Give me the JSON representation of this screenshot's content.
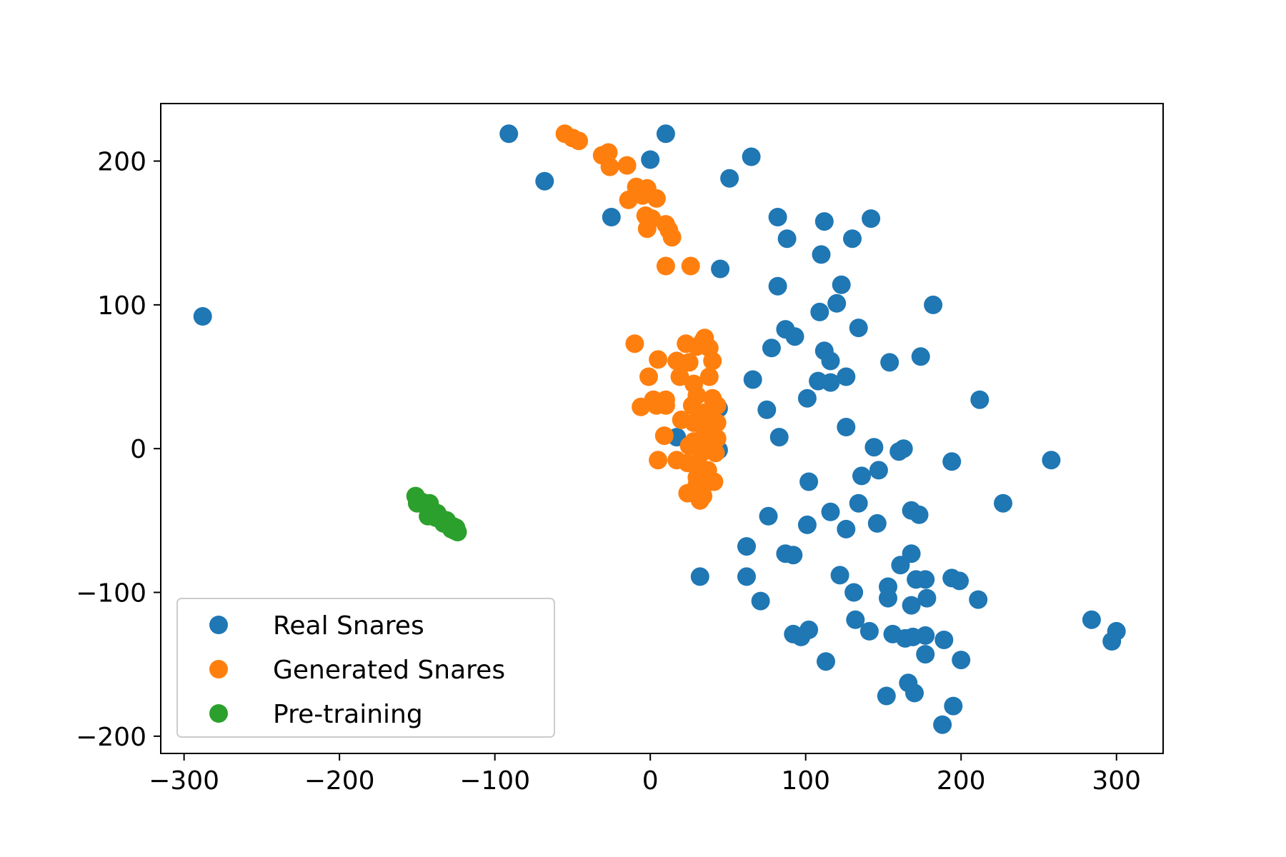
{
  "chart_data": {
    "type": "scatter",
    "title": "",
    "xlabel": "",
    "ylabel": "",
    "xlim": [
      -315,
      330
    ],
    "ylim": [
      -212,
      240
    ],
    "xticks": [
      -300,
      -200,
      -100,
      0,
      100,
      200,
      300
    ],
    "yticks": [
      -200,
      -100,
      0,
      100,
      200
    ],
    "grid": false,
    "legend_position": "lower-left",
    "series": [
      {
        "name": "Real Snares",
        "color": "#1f77b4",
        "points": [
          [
            -288,
            92
          ],
          [
            -91,
            219
          ],
          [
            -68,
            186
          ],
          [
            -25,
            161
          ],
          [
            0,
            201
          ],
          [
            10,
            219
          ],
          [
            51,
            188
          ],
          [
            65,
            203
          ],
          [
            45,
            125
          ],
          [
            82,
            161
          ],
          [
            88,
            146
          ],
          [
            82,
            113
          ],
          [
            110,
            135
          ],
          [
            112,
            158
          ],
          [
            130,
            146
          ],
          [
            142,
            160
          ],
          [
            123,
            114
          ],
          [
            120,
            101
          ],
          [
            109,
            95
          ],
          [
            134,
            84
          ],
          [
            182,
            100
          ],
          [
            87,
            83
          ],
          [
            93,
            78
          ],
          [
            78,
            70
          ],
          [
            112,
            68
          ],
          [
            116,
            61
          ],
          [
            154,
            60
          ],
          [
            174,
            64
          ],
          [
            66,
            48
          ],
          [
            108,
            47
          ],
          [
            116,
            46
          ],
          [
            126,
            50
          ],
          [
            101,
            35
          ],
          [
            75,
            27
          ],
          [
            212,
            34
          ],
          [
            44,
            28
          ],
          [
            126,
            15
          ],
          [
            83,
            8
          ],
          [
            44,
            -1
          ],
          [
            17,
            8
          ],
          [
            144,
            1
          ],
          [
            160,
            -2
          ],
          [
            163,
            0
          ],
          [
            194,
            -9
          ],
          [
            258,
            -8
          ],
          [
            136,
            -19
          ],
          [
            147,
            -15
          ],
          [
            102,
            -23
          ],
          [
            116,
            -44
          ],
          [
            134,
            -38
          ],
          [
            76,
            -47
          ],
          [
            168,
            -43
          ],
          [
            173,
            -46
          ],
          [
            227,
            -38
          ],
          [
            101,
            -53
          ],
          [
            126,
            -56
          ],
          [
            146,
            -52
          ],
          [
            62,
            -68
          ],
          [
            87,
            -73
          ],
          [
            92,
            -74
          ],
          [
            168,
            -73
          ],
          [
            161,
            -81
          ],
          [
            32,
            -89
          ],
          [
            62,
            -89
          ],
          [
            122,
            -88
          ],
          [
            71,
            -106
          ],
          [
            131,
            -100
          ],
          [
            153,
            -96
          ],
          [
            153,
            -104
          ],
          [
            171,
            -91
          ],
          [
            177,
            -91
          ],
          [
            194,
            -90
          ],
          [
            199,
            -92
          ],
          [
            178,
            -104
          ],
          [
            211,
            -105
          ],
          [
            168,
            -109
          ],
          [
            284,
            -119
          ],
          [
            300,
            -127
          ],
          [
            297,
            -134
          ],
          [
            132,
            -119
          ],
          [
            141,
            -127
          ],
          [
            92,
            -129
          ],
          [
            97,
            -131
          ],
          [
            102,
            -126
          ],
          [
            156,
            -129
          ],
          [
            164,
            -132
          ],
          [
            169,
            -131
          ],
          [
            177,
            -130
          ],
          [
            177,
            -143
          ],
          [
            189,
            -133
          ],
          [
            200,
            -147
          ],
          [
            113,
            -148
          ],
          [
            166,
            -163
          ],
          [
            170,
            -170
          ],
          [
            152,
            -172
          ],
          [
            195,
            -179
          ],
          [
            188,
            -192
          ]
        ]
      },
      {
        "name": "Generated Snares",
        "color": "#ff7f0e",
        "points": [
          [
            -55,
            219
          ],
          [
            -50,
            216
          ],
          [
            -46,
            214
          ],
          [
            -31,
            204
          ],
          [
            -27,
            206
          ],
          [
            -26,
            196
          ],
          [
            -15,
            197
          ],
          [
            -9,
            182
          ],
          [
            -14,
            173
          ],
          [
            -5,
            176
          ],
          [
            -2,
            181
          ],
          [
            4,
            174
          ],
          [
            -3,
            162
          ],
          [
            1,
            160
          ],
          [
            10,
            156
          ],
          [
            12,
            152
          ],
          [
            -2,
            153
          ],
          [
            14,
            147
          ],
          [
            10,
            127
          ],
          [
            26,
            127
          ],
          [
            -10,
            73
          ],
          [
            5,
            62
          ],
          [
            17,
            61
          ],
          [
            25,
            60
          ],
          [
            23,
            73
          ],
          [
            30,
            71
          ],
          [
            34,
            75
          ],
          [
            35,
            77
          ],
          [
            38,
            70
          ],
          [
            40,
            61
          ],
          [
            -1,
            50
          ],
          [
            19,
            50
          ],
          [
            28,
            45
          ],
          [
            38,
            50
          ],
          [
            -6,
            29
          ],
          [
            2,
            34
          ],
          [
            4,
            30
          ],
          [
            10,
            34
          ],
          [
            10,
            30
          ],
          [
            27,
            30
          ],
          [
            30,
            37
          ],
          [
            35,
            25
          ],
          [
            40,
            35
          ],
          [
            43,
            30
          ],
          [
            20,
            20
          ],
          [
            28,
            18
          ],
          [
            35,
            13
          ],
          [
            43,
            18
          ],
          [
            28,
            5
          ],
          [
            38,
            3
          ],
          [
            43,
            7
          ],
          [
            9,
            9
          ],
          [
            25,
            2
          ],
          [
            33,
            -3
          ],
          [
            42,
            -3
          ],
          [
            5,
            -8
          ],
          [
            17,
            -8
          ],
          [
            24,
            -10
          ],
          [
            31,
            -12
          ],
          [
            37,
            -15
          ],
          [
            30,
            -20
          ],
          [
            36,
            -24
          ],
          [
            41,
            -23
          ],
          [
            30,
            -25
          ],
          [
            24,
            -31
          ],
          [
            34,
            -33
          ],
          [
            32,
            -36
          ]
        ]
      },
      {
        "name": "Pre-training",
        "color": "#2ca02c",
        "points": [
          [
            -151,
            -33
          ],
          [
            -150,
            -38
          ],
          [
            -147,
            -37
          ],
          [
            -144,
            -40
          ],
          [
            -142,
            -38
          ],
          [
            -141,
            -43
          ],
          [
            -143,
            -47
          ],
          [
            -139,
            -44
          ],
          [
            -137,
            -45
          ],
          [
            -138,
            -48
          ],
          [
            -136,
            -47
          ],
          [
            -134,
            -50
          ],
          [
            -131,
            -50
          ],
          [
            -133,
            -52
          ],
          [
            -130,
            -53
          ],
          [
            -127,
            -54
          ],
          [
            -128,
            -56
          ],
          [
            -125,
            -55
          ],
          [
            -126,
            -57
          ],
          [
            -124,
            -58
          ]
        ]
      }
    ]
  }
}
